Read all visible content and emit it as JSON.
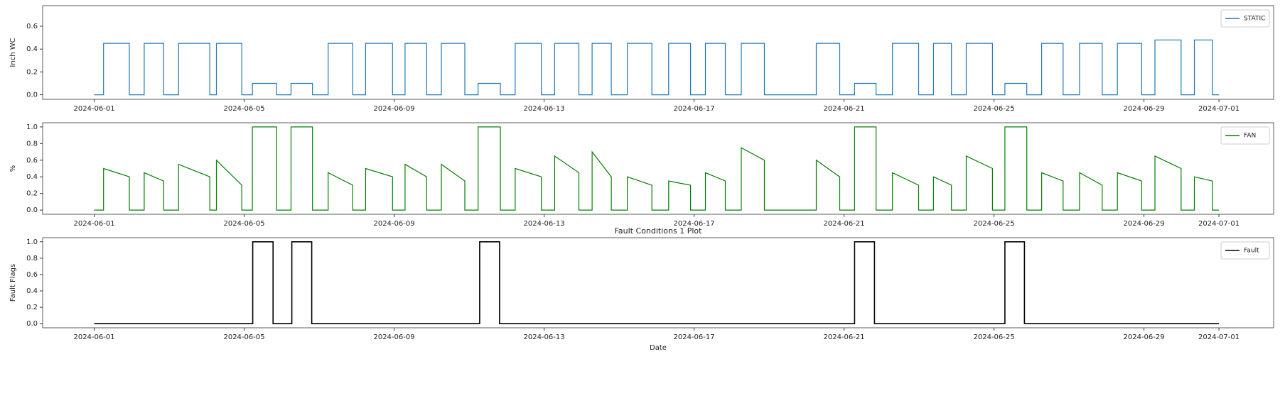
{
  "chart_data": [
    {
      "type": "line",
      "ylabel": "Inch WC",
      "legend": "upper right",
      "xlim": [
        "2024-05-30T15:00",
        "2024-07-02T11:00"
      ],
      "xticks": [
        "2024-06-01",
        "2024-06-05",
        "2024-06-09",
        "2024-06-13",
        "2024-06-17",
        "2024-06-21",
        "2024-06-25",
        "2024-06-29",
        "2024-07-01"
      ],
      "ylim": [
        -0.04,
        0.78
      ],
      "yticks": [
        {
          "value": 0,
          "label": "0.0"
        },
        0.2,
        0.4,
        0.6
      ],
      "series": [
        {
          "name": "STATIC",
          "color": "#1f77b4",
          "x": [
            "2024-06-01T00:00",
            "2024-06-01T06:00",
            "2024-06-01T06:00",
            "2024-06-01T22:30",
            "2024-06-01T22:30",
            "2024-06-02T08:00",
            "2024-06-02T08:00",
            "2024-06-02T20:30",
            "2024-06-02T20:30",
            "2024-06-03T06:00",
            "2024-06-03T06:00",
            "2024-06-04T02:00",
            "2024-06-04T02:00",
            "2024-06-04T06:15",
            "2024-06-04T06:15",
            "2024-06-04T22:30",
            "2024-06-04T22:30",
            "2024-06-05T05:15",
            "2024-06-05T05:15",
            "2024-06-05T20:45",
            "2024-06-05T20:45",
            "2024-06-06T06:00",
            "2024-06-06T06:00",
            "2024-06-06T19:45",
            "2024-06-06T19:45",
            "2024-06-07T05:45",
            "2024-06-07T05:45",
            "2024-06-07T21:30",
            "2024-06-07T21:30",
            "2024-06-08T05:45",
            "2024-06-08T05:45",
            "2024-06-08T23:00",
            "2024-06-08T23:00",
            "2024-06-09T07:00",
            "2024-06-09T07:00",
            "2024-06-09T20:45",
            "2024-06-09T20:45",
            "2024-06-10T06:15",
            "2024-06-10T06:15",
            "2024-06-10T21:15",
            "2024-06-10T21:15",
            "2024-06-11T05:45",
            "2024-06-11T05:45",
            "2024-06-11T20:00",
            "2024-06-11T20:00",
            "2024-06-12T05:30",
            "2024-06-12T05:30",
            "2024-06-12T22:15",
            "2024-06-12T22:15",
            "2024-06-13T06:45",
            "2024-06-13T06:45",
            "2024-06-13T22:15",
            "2024-06-13T22:15",
            "2024-06-14T06:45",
            "2024-06-14T06:45",
            "2024-06-14T19:00",
            "2024-06-14T19:00",
            "2024-06-15T05:15",
            "2024-06-15T05:15",
            "2024-06-15T21:00",
            "2024-06-15T21:00",
            "2024-06-16T07:45",
            "2024-06-16T07:45",
            "2024-06-16T21:45",
            "2024-06-16T21:45",
            "2024-06-17T07:15",
            "2024-06-17T07:15",
            "2024-06-17T20:00",
            "2024-06-17T20:00",
            "2024-06-18T06:15",
            "2024-06-18T06:15",
            "2024-06-18T21:00",
            "2024-06-18T21:00",
            "2024-06-20T06:15",
            "2024-06-20T06:15",
            "2024-06-20T21:15",
            "2024-06-20T21:15",
            "2024-06-21T06:45",
            "2024-06-21T06:45",
            "2024-06-21T20:30",
            "2024-06-21T20:30",
            "2024-06-22T07:00",
            "2024-06-22T07:00",
            "2024-06-22T23:45",
            "2024-06-22T23:45",
            "2024-06-23T09:15",
            "2024-06-23T09:15",
            "2024-06-23T20:45",
            "2024-06-23T20:45",
            "2024-06-24T06:15",
            "2024-06-24T06:15",
            "2024-06-24T23:00",
            "2024-06-24T23:00",
            "2024-06-25T07:00",
            "2024-06-25T07:00",
            "2024-06-25T21:00",
            "2024-06-25T21:00",
            "2024-06-26T06:30",
            "2024-06-26T06:30",
            "2024-06-26T20:15",
            "2024-06-26T20:15",
            "2024-06-27T06:45",
            "2024-06-27T06:45",
            "2024-06-27T21:15",
            "2024-06-27T21:15",
            "2024-06-28T07:00",
            "2024-06-28T07:00",
            "2024-06-28T22:30",
            "2024-06-28T22:30",
            "2024-06-29T07:00",
            "2024-06-29T07:00",
            "2024-06-29T23:45",
            "2024-06-29T23:45",
            "2024-06-30T08:15",
            "2024-06-30T08:15",
            "2024-06-30T19:45",
            "2024-06-30T19:45",
            "2024-07-01T00:00"
          ],
          "values": [
            0,
            0,
            0.45,
            0.45,
            0,
            0,
            0.45,
            0.45,
            0,
            0,
            0.45,
            0.45,
            0,
            0,
            0.45,
            0.45,
            0,
            0,
            0.1,
            0.1,
            0,
            0,
            0.1,
            0.1,
            0,
            0,
            0.45,
            0.45,
            0,
            0,
            0.45,
            0.45,
            0,
            0,
            0.45,
            0.45,
            0,
            0,
            0.45,
            0.45,
            0,
            0,
            0.1,
            0.1,
            0,
            0,
            0.45,
            0.45,
            0,
            0,
            0.45,
            0.45,
            0,
            0,
            0.45,
            0.45,
            0,
            0,
            0.45,
            0.45,
            0,
            0,
            0.45,
            0.45,
            0,
            0,
            0.45,
            0.45,
            0,
            0,
            0.45,
            0.45,
            0,
            0,
            0.45,
            0.45,
            0,
            0,
            0.1,
            0.1,
            0,
            0,
            0.45,
            0.45,
            0,
            0,
            0.45,
            0.45,
            0,
            0,
            0.45,
            0.45,
            0,
            0,
            0.1,
            0.1,
            0,
            0,
            0.45,
            0.45,
            0,
            0,
            0.45,
            0.45,
            0,
            0,
            0.45,
            0.45,
            0,
            0,
            0.48,
            0.48,
            0,
            0,
            0.48,
            0.48,
            0,
            0
          ]
        }
      ]
    },
    {
      "type": "line",
      "ylabel": "%",
      "legend": "upper right",
      "xlim": [
        "2024-05-30T15:00",
        "2024-07-02T11:00"
      ],
      "xticks": [
        "2024-06-01",
        "2024-06-05",
        "2024-06-09",
        "2024-06-13",
        "2024-06-17",
        "2024-06-21",
        "2024-06-25",
        "2024-06-29",
        "2024-07-01"
      ],
      "ylim": [
        -0.05,
        1.05
      ],
      "yticks": [
        {
          "value": 0,
          "label": "0.0"
        },
        0.2,
        0.4,
        0.6,
        0.8,
        {
          "value": 1,
          "label": "1.0"
        }
      ],
      "series": [
        {
          "name": "FAN",
          "color": "#008000",
          "x": [
            "2024-06-01T00:00",
            "2024-06-01T06:00",
            "2024-06-01T06:00",
            "2024-06-01T22:30",
            "2024-06-01T22:30",
            "2024-06-02T08:00",
            "2024-06-02T08:00",
            "2024-06-02T20:30",
            "2024-06-02T20:30",
            "2024-06-03T06:00",
            "2024-06-03T06:00",
            "2024-06-04T02:00",
            "2024-06-04T02:00",
            "2024-06-04T06:15",
            "2024-06-04T06:15",
            "2024-06-04T22:30",
            "2024-06-04T22:30",
            "2024-06-05T05:15",
            "2024-06-05T05:15",
            "2024-06-05T20:45",
            "2024-06-05T20:45",
            "2024-06-06T06:00",
            "2024-06-06T06:00",
            "2024-06-06T19:45",
            "2024-06-06T19:45",
            "2024-06-07T05:45",
            "2024-06-07T05:45",
            "2024-06-07T21:30",
            "2024-06-07T21:30",
            "2024-06-08T05:45",
            "2024-06-08T05:45",
            "2024-06-08T23:00",
            "2024-06-08T23:00",
            "2024-06-09T07:00",
            "2024-06-09T07:00",
            "2024-06-09T20:45",
            "2024-06-09T20:45",
            "2024-06-10T06:15",
            "2024-06-10T06:15",
            "2024-06-10T21:15",
            "2024-06-10T21:15",
            "2024-06-11T05:45",
            "2024-06-11T05:45",
            "2024-06-11T20:00",
            "2024-06-11T20:00",
            "2024-06-12T05:30",
            "2024-06-12T05:30",
            "2024-06-12T22:15",
            "2024-06-12T22:15",
            "2024-06-13T06:45",
            "2024-06-13T06:45",
            "2024-06-13T22:15",
            "2024-06-13T22:15",
            "2024-06-14T06:45",
            "2024-06-14T06:45",
            "2024-06-14T19:00",
            "2024-06-14T19:00",
            "2024-06-15T05:15",
            "2024-06-15T05:15",
            "2024-06-15T21:00",
            "2024-06-15T21:00",
            "2024-06-16T07:45",
            "2024-06-16T07:45",
            "2024-06-16T21:45",
            "2024-06-16T21:45",
            "2024-06-17T07:15",
            "2024-06-17T07:15",
            "2024-06-17T20:00",
            "2024-06-17T20:00",
            "2024-06-18T06:15",
            "2024-06-18T06:15",
            "2024-06-18T21:00",
            "2024-06-18T21:00",
            "2024-06-20T06:15",
            "2024-06-20T06:15",
            "2024-06-20T21:15",
            "2024-06-20T21:15",
            "2024-06-21T06:45",
            "2024-06-21T06:45",
            "2024-06-21T20:30",
            "2024-06-21T20:30",
            "2024-06-22T07:00",
            "2024-06-22T07:00",
            "2024-06-22T23:45",
            "2024-06-22T23:45",
            "2024-06-23T09:15",
            "2024-06-23T09:15",
            "2024-06-23T20:45",
            "2024-06-23T20:45",
            "2024-06-24T06:15",
            "2024-06-24T06:15",
            "2024-06-24T23:00",
            "2024-06-24T23:00",
            "2024-06-25T07:00",
            "2024-06-25T07:00",
            "2024-06-25T21:00",
            "2024-06-25T21:00",
            "2024-06-26T06:30",
            "2024-06-26T06:30",
            "2024-06-26T20:15",
            "2024-06-26T20:15",
            "2024-06-27T06:45",
            "2024-06-27T06:45",
            "2024-06-27T21:15",
            "2024-06-27T21:15",
            "2024-06-28T07:00",
            "2024-06-28T07:00",
            "2024-06-28T22:30",
            "2024-06-28T22:30",
            "2024-06-29T07:00",
            "2024-06-29T07:00",
            "2024-06-29T23:45",
            "2024-06-29T23:45",
            "2024-06-30T08:15",
            "2024-06-30T08:15",
            "2024-06-30T19:45",
            "2024-06-30T19:45",
            "2024-07-01T00:00"
          ],
          "values": [
            0,
            0,
            0.5,
            0.4,
            0,
            0,
            0.45,
            0.35,
            0,
            0,
            0.55,
            0.4,
            0,
            0,
            0.6,
            0.3,
            0,
            0,
            1,
            1,
            0,
            0,
            1,
            1,
            0,
            0,
            0.45,
            0.3,
            0,
            0,
            0.5,
            0.4,
            0,
            0,
            0.55,
            0.4,
            0,
            0,
            0.55,
            0.35,
            0,
            0,
            1,
            1,
            0,
            0,
            0.5,
            0.4,
            0,
            0,
            0.65,
            0.45,
            0,
            0,
            0.7,
            0.4,
            0,
            0,
            0.4,
            0.3,
            0,
            0,
            0.35,
            0.3,
            0,
            0,
            0.45,
            0.35,
            0,
            0,
            0.75,
            0.6,
            0,
            0,
            0.6,
            0.4,
            0,
            0,
            1,
            1,
            0,
            0,
            0.45,
            0.3,
            0,
            0,
            0.4,
            0.3,
            0,
            0,
            0.65,
            0.5,
            0,
            0,
            1,
            1,
            0,
            0,
            0.45,
            0.35,
            0,
            0,
            0.45,
            0.3,
            0,
            0,
            0.45,
            0.35,
            0,
            0,
            0.65,
            0.5,
            0,
            0,
            0.4,
            0.35,
            0,
            0
          ]
        }
      ]
    },
    {
      "type": "line",
      "title": "Fault Conditions 1 Plot",
      "xlabel": "Date",
      "ylabel": "Fault Flags",
      "legend": "upper right",
      "xlim": [
        "2024-05-30T15:00",
        "2024-07-02T11:00"
      ],
      "xticks": [
        "2024-06-01",
        "2024-06-05",
        "2024-06-09",
        "2024-06-13",
        "2024-06-17",
        "2024-06-21",
        "2024-06-25",
        "2024-06-29",
        "2024-07-01"
      ],
      "ylim": [
        -0.05,
        1.05
      ],
      "yticks": [
        {
          "value": 0,
          "label": "0.0"
        },
        0.2,
        0.4,
        0.6,
        0.8,
        {
          "value": 1,
          "label": "1.0"
        }
      ],
      "series": [
        {
          "name": "Fault",
          "color": "#000000",
          "x": [
            "2024-06-01T00:00",
            "2024-06-05T05:30",
            "2024-06-05T05:30",
            "2024-06-05T18:30",
            "2024-06-05T18:30",
            "2024-06-06T06:30",
            "2024-06-06T06:30",
            "2024-06-06T19:15",
            "2024-06-06T19:15",
            "2024-06-11T06:45",
            "2024-06-11T06:45",
            "2024-06-11T19:30",
            "2024-06-11T19:30",
            "2024-06-21T06:45",
            "2024-06-21T06:45",
            "2024-06-21T19:30",
            "2024-06-21T19:30",
            "2024-06-25T07:00",
            "2024-06-25T07:00",
            "2024-06-25T19:30",
            "2024-06-25T19:30",
            "2024-07-01T00:00"
          ],
          "values": [
            0,
            0,
            1,
            1,
            0,
            0,
            1,
            1,
            0,
            0,
            1,
            1,
            0,
            0,
            1,
            1,
            0,
            0,
            1,
            1,
            0,
            0
          ]
        }
      ]
    }
  ]
}
